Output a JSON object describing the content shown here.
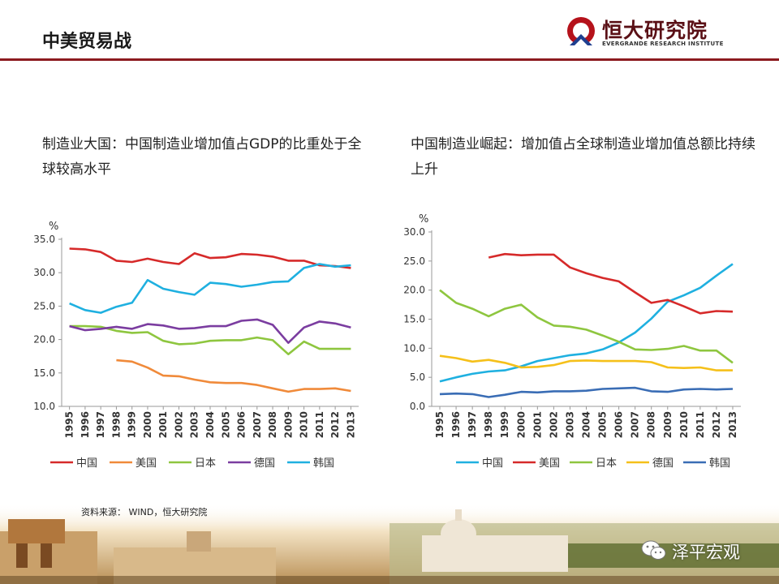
{
  "header": {
    "title": "中美贸易战"
  },
  "logo": {
    "name_cn": "恒大研究院",
    "name_en": "EVERGRANDE RESEARCH INSTITUTE"
  },
  "subtitles": {
    "left": "制造业大国：中国制造业增加值占GDP的比重处于全球较高水平",
    "right": "中国制造业崛起：增加值占全球制造业增加值总额比持续上升"
  },
  "source": "资料来源： WIND，恒大研究院",
  "watermark": "泽平宏观",
  "chart_data": [
    {
      "type": "line",
      "unit_label": "%",
      "ylim": [
        10,
        35
      ],
      "yticks": [
        "10.0",
        "15.0",
        "20.0",
        "25.0",
        "30.0",
        "35.0"
      ],
      "x": [
        "1995",
        "1996",
        "1997",
        "1998",
        "1999",
        "2000",
        "2001",
        "2002",
        "2003",
        "2004",
        "2005",
        "2006",
        "2007",
        "2008",
        "2009",
        "2010",
        "2011",
        "2012",
        "2013"
      ],
      "legend_position": "bottom",
      "grid": false,
      "series": [
        {
          "name": "中国",
          "color": "#d62a2a",
          "values": [
            33.6,
            33.5,
            33.1,
            31.8,
            31.6,
            32.1,
            31.6,
            31.3,
            32.9,
            32.2,
            32.3,
            32.8,
            32.7,
            32.4,
            31.8,
            31.8,
            31.1,
            31.0,
            30.7
          ]
        },
        {
          "name": "美国",
          "color": "#f08a3a",
          "values": [
            null,
            null,
            null,
            16.9,
            16.7,
            15.8,
            14.6,
            14.5,
            14.0,
            13.6,
            13.5,
            13.5,
            13.2,
            12.7,
            12.2,
            12.6,
            12.6,
            12.7,
            12.3
          ]
        },
        {
          "name": "日本",
          "color": "#8ec63f",
          "values": [
            22.0,
            22.0,
            21.9,
            21.3,
            21.0,
            21.1,
            19.8,
            19.3,
            19.4,
            19.8,
            19.9,
            19.9,
            20.3,
            19.9,
            17.8,
            19.7,
            18.6,
            18.6,
            18.6
          ]
        },
        {
          "name": "德国",
          "color": "#7b3da0",
          "values": [
            22.0,
            21.4,
            21.6,
            21.9,
            21.6,
            22.3,
            22.1,
            21.6,
            21.7,
            22.0,
            22.0,
            22.8,
            23.0,
            22.2,
            19.5,
            21.8,
            22.7,
            22.4,
            21.8
          ]
        },
        {
          "name": "韩国",
          "color": "#1fb0e0",
          "values": [
            25.4,
            24.4,
            24.0,
            24.9,
            25.5,
            28.9,
            27.6,
            27.1,
            26.7,
            28.5,
            28.3,
            27.9,
            28.2,
            28.6,
            28.7,
            30.7,
            31.3,
            30.9,
            31.1
          ]
        }
      ]
    },
    {
      "type": "line",
      "unit_label": "%",
      "ylim": [
        0,
        30
      ],
      "yticks": [
        "0.0",
        "5.0",
        "10.0",
        "15.0",
        "20.0",
        "25.0",
        "30.0"
      ],
      "x": [
        "1995",
        "1996",
        "1997",
        "1998",
        "1999",
        "2000",
        "2001",
        "2002",
        "2003",
        "2004",
        "2005",
        "2006",
        "2007",
        "2008",
        "2009",
        "2010",
        "2011",
        "2012",
        "2013"
      ],
      "legend_position": "bottom",
      "grid": false,
      "series": [
        {
          "name": "中国",
          "color": "#1fb0e0",
          "values": [
            4.3,
            5.0,
            5.6,
            6.0,
            6.2,
            6.9,
            7.8,
            8.3,
            8.8,
            9.1,
            9.8,
            11.0,
            12.7,
            15.1,
            18.0,
            19.1,
            20.4,
            22.5,
            24.5
          ]
        },
        {
          "name": "美国",
          "color": "#d62a2a",
          "values": [
            null,
            null,
            null,
            25.6,
            26.2,
            26.0,
            26.1,
            26.1,
            23.9,
            22.9,
            22.1,
            21.5,
            19.6,
            17.8,
            18.3,
            17.2,
            16.0,
            16.4,
            16.3
          ]
        },
        {
          "name": "日本",
          "color": "#8ec63f",
          "values": [
            20.0,
            17.8,
            16.8,
            15.5,
            16.8,
            17.5,
            15.3,
            13.9,
            13.7,
            13.2,
            12.2,
            11.1,
            9.8,
            9.7,
            9.9,
            10.4,
            9.6,
            9.6,
            7.5
          ]
        },
        {
          "name": "德国",
          "color": "#f5c01a",
          "values": [
            8.7,
            8.3,
            7.7,
            8.0,
            7.5,
            6.7,
            6.8,
            7.1,
            7.8,
            7.9,
            7.8,
            7.8,
            7.8,
            7.6,
            6.7,
            6.6,
            6.7,
            6.2,
            6.2
          ]
        },
        {
          "name": "韩国",
          "color": "#3a6db5",
          "values": [
            2.1,
            2.2,
            2.1,
            1.6,
            2.0,
            2.5,
            2.4,
            2.6,
            2.6,
            2.7,
            3.0,
            3.1,
            3.2,
            2.6,
            2.5,
            2.9,
            3.0,
            2.9,
            3.0
          ]
        }
      ]
    }
  ]
}
